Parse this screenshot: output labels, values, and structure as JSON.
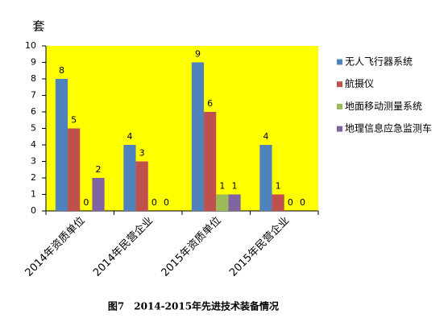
{
  "chart_data": {
    "type": "bar",
    "title": "图7　2014-2015年先进技术装备情况",
    "y_label": "套",
    "categories": [
      "2014年资质单位",
      "2014年民营企业",
      "2015年资质单位",
      "2015年民营企业"
    ],
    "series": [
      {
        "name": "无人飞行器系统",
        "color": "#4f81bd",
        "values": [
          8,
          4,
          9,
          4
        ]
      },
      {
        "name": "航摄仪",
        "color": "#c0504d",
        "values": [
          5,
          3,
          6,
          1
        ]
      },
      {
        "name": "地面移动测量系统",
        "color": "#9bbb59",
        "values": [
          0,
          0,
          1,
          0
        ]
      },
      {
        "name": "地理信息应急监测车",
        "color": "#8064a2",
        "values": [
          2,
          0,
          1,
          0
        ]
      }
    ],
    "ylim": [
      0,
      10
    ],
    "yticks": [
      0,
      1,
      2,
      3,
      4,
      5,
      6,
      7,
      8,
      9,
      10
    ],
    "grid": false,
    "legend": "right",
    "plot_background": "#ffff00"
  }
}
